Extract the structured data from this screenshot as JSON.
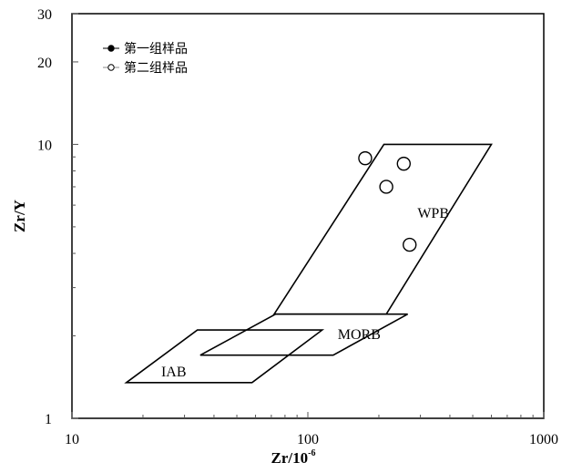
{
  "chart_data": {
    "type": "scatter",
    "x_scale": "log",
    "y_scale": "log",
    "xlim": [
      10,
      1000
    ],
    "ylim": [
      1,
      30
    ],
    "xlabel": "Zr/10",
    "xlabel_sup": "-6",
    "ylabel": "Zr/Y",
    "x_ticks": [
      {
        "value": 10,
        "label": "10"
      },
      {
        "value": 100,
        "label": "100"
      },
      {
        "value": 1000,
        "label": "1000"
      }
    ],
    "y_ticks": [
      {
        "value": 1,
        "label": "1"
      },
      {
        "value": 10,
        "label": "10"
      },
      {
        "value": 20,
        "label": "20"
      },
      {
        "value": 30,
        "label": "30"
      }
    ],
    "grid": false,
    "legend": {
      "placement": "top-left",
      "entries": [
        {
          "label": "第一组样品",
          "marker": "filled-circle",
          "color": "#000000"
        },
        {
          "label": "第二组样品",
          "marker": "open-circle",
          "color": "#000000"
        }
      ]
    },
    "regions": [
      {
        "name": "WPB",
        "label_at": [
          340,
          5.4
        ],
        "polygon": [
          [
            72,
            2.4
          ],
          [
            210,
            10
          ],
          [
            600,
            10
          ],
          [
            215,
            2.4
          ]
        ]
      },
      {
        "name": "MORB",
        "label_at": [
          165,
          1.95
        ],
        "polygon": [
          [
            35,
            1.7
          ],
          [
            73,
            2.4
          ],
          [
            265,
            2.4
          ],
          [
            128,
            1.7
          ]
        ]
      },
      {
        "name": "IAB",
        "label_at": [
          27,
          1.42
        ],
        "polygon": [
          [
            17,
            1.35
          ],
          [
            34,
            2.1
          ],
          [
            115,
            2.1
          ],
          [
            58,
            1.35
          ]
        ]
      }
    ],
    "series": [
      {
        "name": "第二组样品",
        "marker": "open-circle",
        "points": [
          [
            175,
            8.9
          ],
          [
            215,
            7.0
          ],
          [
            255,
            8.5
          ],
          [
            270,
            4.3
          ]
        ]
      }
    ]
  }
}
